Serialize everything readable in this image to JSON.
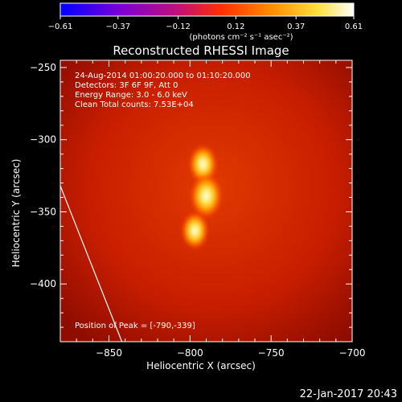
{
  "chart_data": {
    "type": "heatmap",
    "title": "Reconstructed RHESSI Image",
    "xlabel": "Heliocentric X (arcsec)",
    "ylabel": "Heliocentric Y (arcsec)",
    "xlim": [
      -880,
      -700
    ],
    "ylim": [
      -440,
      -245
    ],
    "x_ticks": [
      -850,
      -800,
      -750,
      -700
    ],
    "y_ticks": [
      -250,
      -300,
      -350,
      -400
    ],
    "x_tick_labels": [
      "−850",
      "−800",
      "−750",
      "−700"
    ],
    "y_tick_labels": [
      "−250",
      "−300",
      "−350",
      "−400"
    ],
    "colorbar": {
      "min": -0.61,
      "max": 0.61,
      "ticks": [
        -0.61,
        -0.37,
        -0.12,
        0.12,
        0.37,
        0.61
      ],
      "tick_labels": [
        "−0.61",
        "−0.37",
        "−0.12",
        "0.12",
        "0.37",
        "0.61"
      ],
      "units_label": "(photons cm⁻² s⁻¹ asec⁻²)",
      "colormap": [
        "#0000ff",
        "#7a00d6",
        "#c0107a",
        "#ff3000",
        "#ff8c00",
        "#ffe040",
        "#ffffff"
      ]
    },
    "annotations": [
      "24-Aug-2014 01:00:20.000 to 01:10:20.000",
      "Detectors: 3F 6F 9F, Att 0",
      "Energy Range: 3.0 - 6.0 keV",
      "Clean    Total counts: 7.53E+04"
    ],
    "peak_label": "Position of Peak = [-790,-339]",
    "peak": [
      -790,
      -339
    ],
    "sources": [
      {
        "x": -792,
        "y": -317,
        "intensity": 0.52
      },
      {
        "x": -790,
        "y": -339,
        "intensity": 0.61
      },
      {
        "x": -797,
        "y": -363,
        "intensity": 0.5
      }
    ],
    "background_intensity": 0.18,
    "limb_line": {
      "x": [
        -880,
        -842
      ],
      "y": [
        -332,
        -440
      ]
    },
    "footer_date": "22-Jan-2017 20:43"
  }
}
